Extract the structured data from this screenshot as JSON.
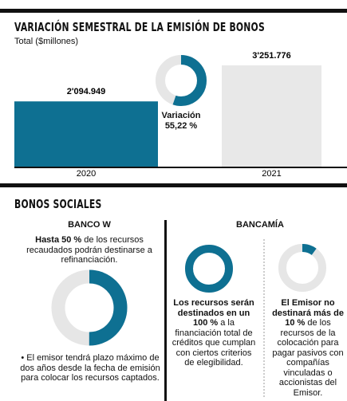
{
  "section1": {
    "title": "VARIACIÓN SEMESTRAL DE LA EMISIÓN DE BONOS",
    "subtitle": "Total ($millones)",
    "bars": {
      "categories": [
        "2020",
        "2021"
      ],
      "values": [
        2094949,
        3251776
      ],
      "value_labels": [
        "2'094.949",
        "3'251.776"
      ],
      "colors": [
        "#0e7092",
        "#e8e8e8"
      ]
    },
    "variation": {
      "label": "Variación",
      "value": 55.22,
      "value_label": "55,22 %",
      "color": "#0e7092"
    }
  },
  "section2": {
    "title": "BONOS SOCIALES",
    "banco_w": {
      "name": "BANCO W",
      "text_bold": "Hasta 50 %",
      "text": "de los recursos recaudados podrán destinarse a refinanciación.",
      "donut_value": 50,
      "note": "• El emisor tendrá plazo máximo de dos años desde la fecha de emisión para colocar los recursos captados."
    },
    "bancamia": {
      "name": "BANCAMÍA",
      "left": {
        "donut_value": 100,
        "text_bold": "Los recursos serán destinados en un 100 %",
        "text": "a la financiación total de créditos que cumplan con ciertos criterios de elegibilidad."
      },
      "right": {
        "donut_value": 10,
        "text_bold": "El Emisor no destinará más de 10 %",
        "text": "de los recursos de la colocación para pagar pasivos con compañías vinculadas o accionistas del Emisor."
      }
    }
  }
}
